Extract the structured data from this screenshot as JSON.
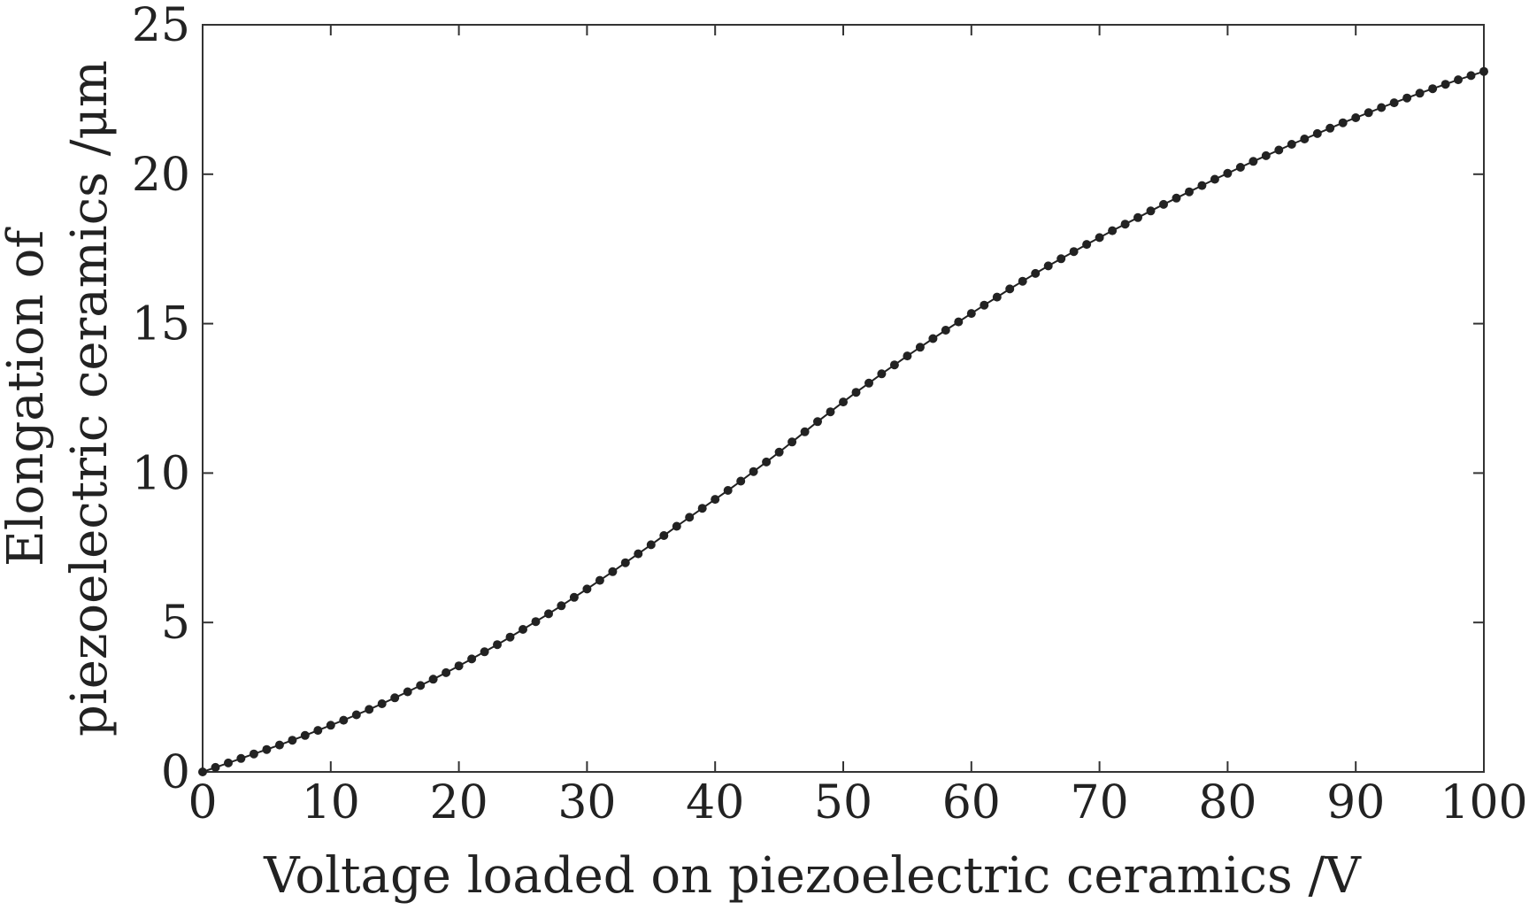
{
  "chart_data": {
    "type": "scatter",
    "title": "",
    "xlabel": "Voltage loaded on piezoelectric ceramics /V",
    "ylabel_lines": [
      "Elongation of",
      "piezoelectric ceramics /μm"
    ],
    "xlim": [
      0,
      100
    ],
    "ylim": [
      0,
      25
    ],
    "xticks": [
      0,
      10,
      20,
      30,
      40,
      50,
      60,
      70,
      80,
      90,
      100
    ],
    "yticks": [
      0,
      5,
      10,
      15,
      20,
      25
    ],
    "grid": false,
    "legend": "none",
    "marker_color": "#222222",
    "line_color": "#222222",
    "series": [
      {
        "x": [
          0,
          1,
          2,
          3,
          4,
          5,
          6,
          7,
          8,
          9,
          10,
          11,
          12,
          13,
          14,
          15,
          16,
          17,
          18,
          19,
          20,
          21,
          22,
          23,
          24,
          25,
          26,
          27,
          28,
          29,
          30,
          31,
          32,
          33,
          34,
          35,
          36,
          37,
          38,
          39,
          40,
          41,
          42,
          43,
          44,
          45,
          46,
          47,
          48,
          49,
          50,
          51,
          52,
          53,
          54,
          55,
          56,
          57,
          58,
          59,
          60,
          61,
          62,
          63,
          64,
          65,
          66,
          67,
          68,
          69,
          70,
          71,
          72,
          73,
          74,
          75,
          76,
          77,
          78,
          79,
          80,
          81,
          82,
          83,
          84,
          85,
          86,
          87,
          88,
          89,
          90,
          91,
          92,
          93,
          94,
          95,
          96,
          97,
          98,
          99,
          100
        ],
        "values": [
          0,
          0.15,
          0.3,
          0.45,
          0.6,
          0.75,
          0.9,
          1.06,
          1.22,
          1.39,
          1.56,
          1.73,
          1.91,
          2.09,
          2.28,
          2.48,
          2.68,
          2.89,
          3.1,
          3.32,
          3.55,
          3.78,
          4.02,
          4.26,
          4.51,
          4.77,
          5.03,
          5.29,
          5.56,
          5.84,
          6.12,
          6.41,
          6.7,
          7.0,
          7.3,
          7.6,
          7.91,
          8.22,
          8.52,
          8.82,
          9.12,
          9.42,
          9.73,
          10.05,
          10.37,
          10.7,
          11.04,
          11.38,
          11.72,
          12.05,
          12.38,
          12.7,
          13.01,
          13.32,
          13.62,
          13.92,
          14.21,
          14.5,
          14.78,
          15.06,
          15.34,
          15.62,
          15.89,
          16.16,
          16.42,
          16.68,
          16.93,
          17.17,
          17.41,
          17.65,
          17.88,
          18.11,
          18.33,
          18.55,
          18.77,
          18.99,
          19.2,
          19.41,
          19.62,
          19.83,
          20.03,
          20.23,
          20.43,
          20.62,
          20.81,
          21.0,
          21.18,
          21.36,
          21.54,
          21.72,
          21.89,
          22.06,
          22.23,
          22.39,
          22.55,
          22.71,
          22.86,
          23.01,
          23.16,
          23.3,
          23.44
        ]
      }
    ]
  }
}
